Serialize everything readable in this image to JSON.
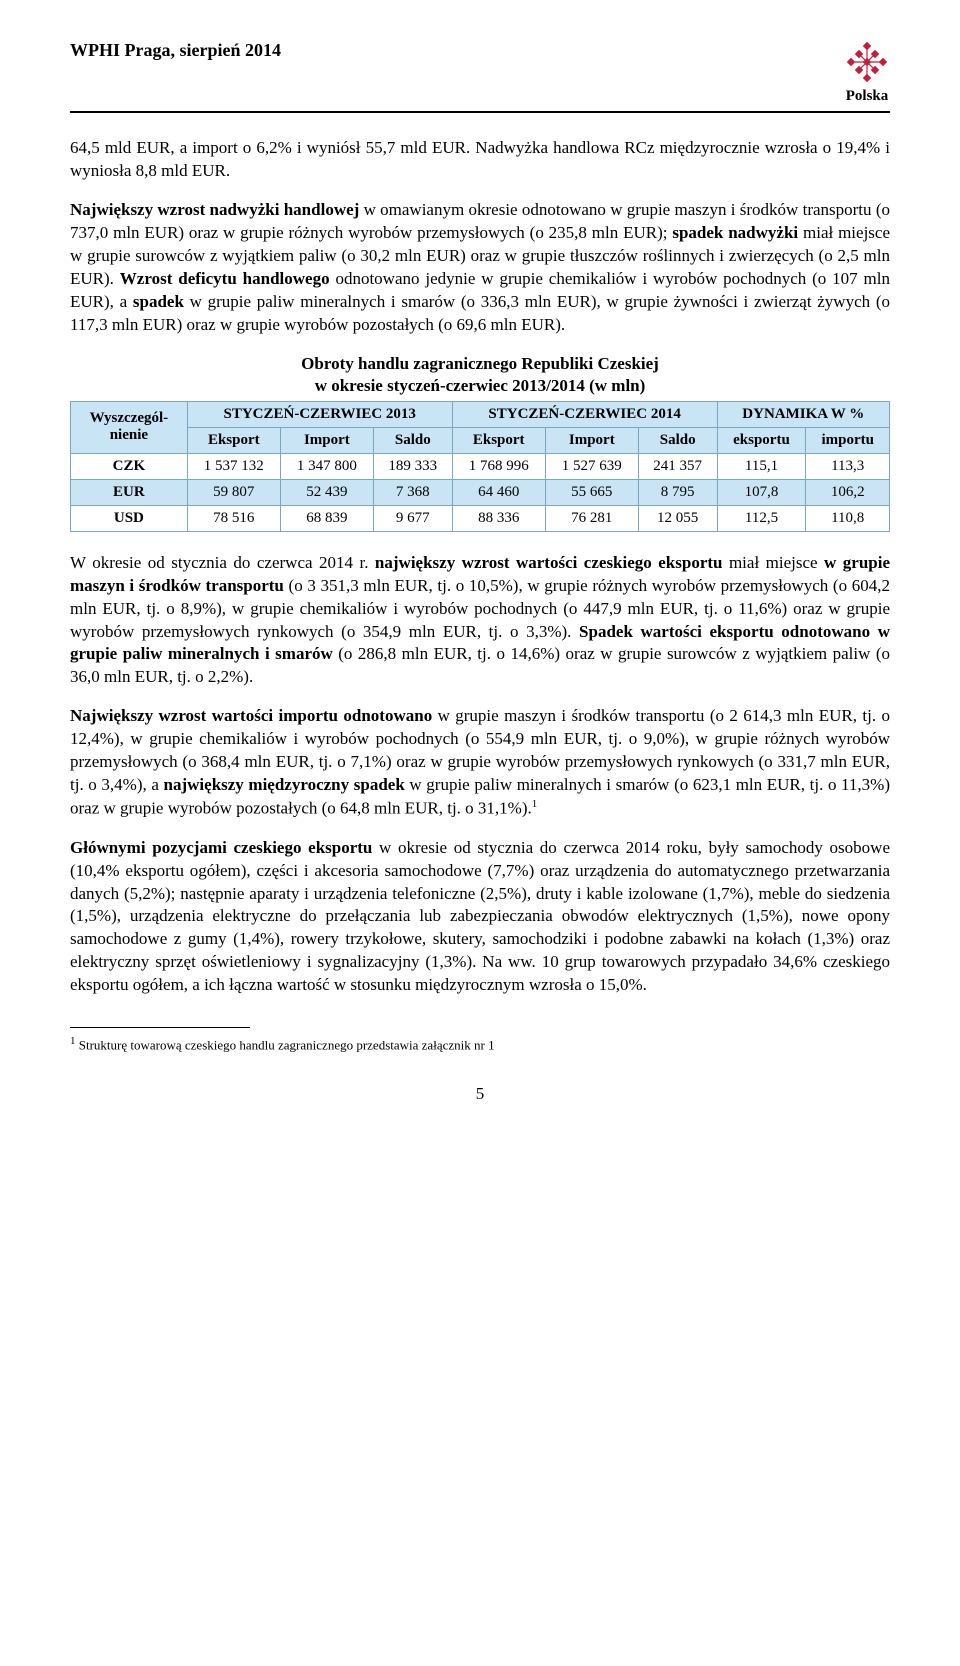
{
  "header": {
    "title": "WPHI  Praga, sierpień 2014",
    "logo_text": "Polska",
    "logo_color": "#c41e3a"
  },
  "para1_parts": [
    {
      "t": "64,5 mld EUR, a import o 6,2% i wyniósł 55,7 mld EUR. Nadwyżka handlowa RCz międzyrocznie wzrosła o 19,4% i wyniosła 8,8 mld EUR."
    }
  ],
  "para2_parts": [
    {
      "t": "Największy wzrost nadwyżki handlowej",
      "b": true
    },
    {
      "t": " w omawianym okresie odnotowano w grupie maszyn i środków transportu (o 737,0 mln EUR) oraz w grupie różnych wyrobów przemysłowych (o 235,8 mln EUR); "
    },
    {
      "t": "spadek nadwyżki",
      "b": true
    },
    {
      "t": " miał miejsce w grupie surowców z wyjątkiem paliw (o 30,2 mln EUR) oraz w grupie tłuszczów roślinnych i zwierzęcych (o 2,5 mln EUR). "
    },
    {
      "t": "Wzrost deficytu handlowego",
      "b": true
    },
    {
      "t": " odnotowano jedynie w grupie chemikaliów i wyrobów pochodnych (o 107 mln EUR), a "
    },
    {
      "t": "spadek",
      "b": true
    },
    {
      "t": " w grupie paliw mineralnych i smarów (o 336,3 mln EUR), w grupie żywności i zwierząt żywych (o 117,3 mln EUR) oraz w grupie wyrobów pozostałych (o 69,6 mln EUR)."
    }
  ],
  "table": {
    "title_line1": "Obroty handlu zagranicznego Republiki Czeskiej",
    "title_line2": "w okresie styczeń-czerwiec 2013/2014 (w mln)",
    "header_bg": "#c9e4f5",
    "border_color": "#7aa6c2",
    "col_group_labels": [
      "STYCZEŃ-CZERWIEC 2013",
      "STYCZEŃ-CZERWIEC 2014",
      "DYNAMIKA W %"
    ],
    "rowhead_label": "Wyszczegól-\nnienie",
    "subheaders": [
      "Eksport",
      "Import",
      "Saldo",
      "Eksport",
      "Import",
      "Saldo",
      "eksportu",
      "importu"
    ],
    "rows": [
      {
        "label": "CZK",
        "vals": [
          "1 537 132",
          "1 347 800",
          "189 333",
          "1 768 996",
          "1 527 639",
          "241 357",
          "115,1",
          "113,3"
        ],
        "highlight": false
      },
      {
        "label": "EUR",
        "vals": [
          "59 807",
          "52 439",
          "7 368",
          "64 460",
          "55 665",
          "8 795",
          "107,8",
          "106,2"
        ],
        "highlight": true
      },
      {
        "label": "USD",
        "vals": [
          "78 516",
          "68 839",
          "9 677",
          "88 336",
          "76 281",
          "12 055",
          "112,5",
          "110,8"
        ],
        "highlight": false
      }
    ]
  },
  "para3_parts": [
    {
      "t": "W okresie od stycznia do czerwca  2014 r. "
    },
    {
      "t": "największy wzrost wartości czeskiego eksportu",
      "b": true
    },
    {
      "t": " miał miejsce "
    },
    {
      "t": "w grupie maszyn i środków transportu",
      "b": true
    },
    {
      "t": " (o 3 351,3 mln EUR, tj. o 10,5%), w grupie różnych wyrobów przemysłowych (o 604,2 mln EUR, tj. o 8,9%), w grupie chemikaliów i wyrobów pochodnych (o 447,9 mln EUR, tj. o 11,6%) oraz w grupie wyrobów przemysłowych rynkowych (o 354,9 mln EUR, tj. o 3,3%). "
    },
    {
      "t": "Spadek wartości eksportu odnotowano w grupie paliw mineralnych i smarów",
      "b": true
    },
    {
      "t": " (o  286,8 mln EUR, tj. o 14,6%) oraz w grupie  surowców z wyjątkiem paliw (o 36,0 mln EUR, tj. o 2,2%)."
    }
  ],
  "para4_parts": [
    {
      "t": "Największy wzrost wartości importu odnotowano",
      "b": true
    },
    {
      "t": " w grupie maszyn i środków transportu (o 2 614,3 mln EUR, tj. o 12,4%), w grupie chemikaliów i wyrobów pochodnych (o 554,9 mln EUR, tj. o 9,0%), w grupie różnych wyrobów przemysłowych (o 368,4 mln EUR, tj. o 7,1%) oraz w grupie wyrobów przemysłowych rynkowych (o 331,7 mln EUR, tj. o 3,4%), a "
    },
    {
      "t": "największy międzyroczny spadek",
      "b": true
    },
    {
      "t": " w grupie  paliw mineralnych i smarów (o 623,1 mln EUR, tj. o 11,3%) oraz w grupie wyrobów pozostałych (o 64,8 mln EUR, tj. o 31,1%)."
    }
  ],
  "para4_sup": "1",
  "para5_parts": [
    {
      "t": "Głównymi pozycjami czeskiego eksportu",
      "b": true
    },
    {
      "t": " w okresie od stycznia do czerwca 2014 roku, były samochody osobowe (10,4% eksportu ogółem), części i akcesoria samochodowe (7,7%) oraz urządzenia do automatycznego przetwarzania danych (5,2%); następnie aparaty i urządzenia telefoniczne (2,5%), druty i kable izolowane (1,7%), meble do siedzenia (1,5%), urządzenia elektryczne do przełączania lub zabezpieczania obwodów elektrycznych (1,5%), nowe opony samochodowe z gumy (1,4%), rowery trzykołowe, skutery, samochodziki i podobne zabawki na kołach (1,3%) oraz elektryczny sprzęt oświetleniowy i sygnalizacyjny (1,3%). Na ww. 10 grup towarowych przypadało 34,6% czeskiego eksportu ogółem, a ich łączna wartość w stosunku międzyrocznym wzrosła o 15,0%."
    }
  ],
  "footnote": {
    "marker": "1",
    "text": " Strukturę towarową czeskiego handlu zagranicznego przedstawia załącznik nr 1"
  },
  "page_number": "5"
}
